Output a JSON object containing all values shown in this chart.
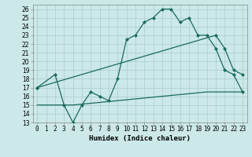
{
  "xlabel": "Humidex (Indice chaleur)",
  "ylabel": "",
  "bg_color": "#cce8e8",
  "grid_color": "#aacccc",
  "line_color": "#1a6b5a",
  "xlim": [
    -0.5,
    23.5
  ],
  "ylim": [
    13,
    26.5
  ],
  "xticks": [
    0,
    1,
    2,
    3,
    4,
    5,
    6,
    7,
    8,
    9,
    10,
    11,
    12,
    13,
    14,
    15,
    16,
    17,
    18,
    19,
    20,
    21,
    22,
    23
  ],
  "yticks": [
    13,
    14,
    15,
    16,
    17,
    18,
    19,
    20,
    21,
    22,
    23,
    24,
    25,
    26
  ],
  "line1_x": [
    0,
    2,
    3,
    4,
    5,
    6,
    7,
    8,
    9,
    10,
    11,
    12,
    13,
    14,
    15,
    16,
    17,
    18,
    19,
    20,
    21,
    22,
    23
  ],
  "line1_y": [
    17,
    18.5,
    15,
    13,
    15,
    16.5,
    16,
    15.5,
    18,
    22.5,
    23,
    24.5,
    25,
    26,
    26,
    24.5,
    25,
    23,
    23,
    21.5,
    19,
    18.5,
    16.5
  ],
  "line2_x": [
    0,
    20,
    21,
    22,
    23
  ],
  "line2_y": [
    17,
    23.0,
    21.5,
    19.0,
    18.5
  ],
  "line3_x": [
    0,
    1,
    2,
    3,
    4,
    5,
    6,
    7,
    8,
    9,
    10,
    11,
    12,
    13,
    14,
    15,
    16,
    17,
    18,
    19,
    20,
    21,
    22,
    23
  ],
  "line3_y": [
    15,
    15,
    15,
    15,
    15,
    15.1,
    15.2,
    15.3,
    15.4,
    15.5,
    15.6,
    15.7,
    15.8,
    15.9,
    16.0,
    16.1,
    16.2,
    16.3,
    16.4,
    16.5,
    16.5,
    16.5,
    16.5,
    16.5
  ],
  "markersize": 2.5,
  "linewidth": 0.9,
  "tick_fontsize": 5.5,
  "label_fontsize": 6.5
}
